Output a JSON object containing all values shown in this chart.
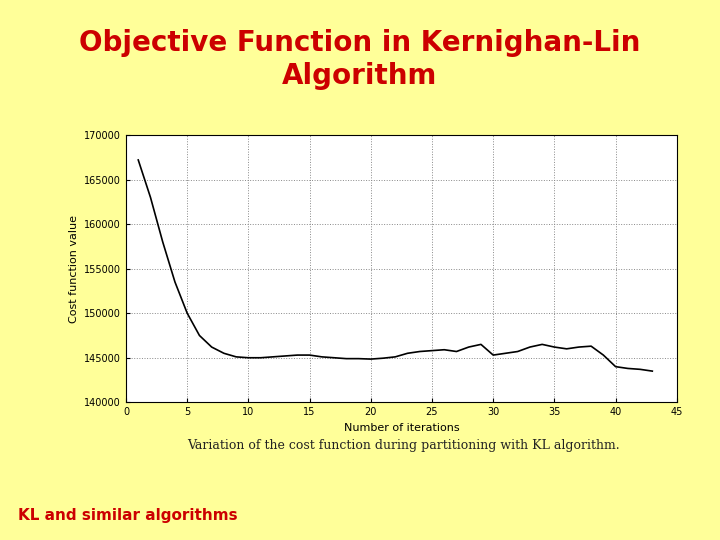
{
  "title": "Objective Function in Kernighan-Lin\nAlgorithm",
  "title_color": "#cc0000",
  "title_bg_color": "#ffff99",
  "page_bg_color": "#ffff99",
  "xlabel": "Number of iterations",
  "ylabel": "Cost function value",
  "caption": "Variation of the cost function during partitioning with KL algorithm.",
  "footer_text": "KL and similar algorithms",
  "footer_color": "#cc0000",
  "footer_bg_color": "#ffff99",
  "xlim": [
    0,
    45
  ],
  "ylim": [
    140000,
    170000
  ],
  "xticks": [
    0,
    5,
    10,
    15,
    20,
    25,
    30,
    35,
    40,
    45
  ],
  "yticks": [
    140000,
    145000,
    150000,
    155000,
    160000,
    165000,
    170000
  ],
  "curve_color": "#000000",
  "x_data": [
    1,
    2,
    3,
    4,
    5,
    6,
    7,
    8,
    9,
    10,
    11,
    12,
    13,
    14,
    15,
    16,
    17,
    18,
    19,
    20,
    21,
    22,
    23,
    24,
    25,
    26,
    27,
    28,
    29,
    30,
    31,
    32,
    33,
    34,
    35,
    36,
    37,
    38,
    39,
    40,
    41,
    42,
    43
  ],
  "y_data": [
    167200,
    163000,
    158000,
    153500,
    150000,
    147500,
    146200,
    145500,
    145100,
    145000,
    145000,
    145100,
    145200,
    145300,
    145300,
    145100,
    145000,
    144900,
    144900,
    144850,
    144950,
    145100,
    145500,
    145700,
    145800,
    145900,
    145700,
    146200,
    146500,
    145300,
    145500,
    145700,
    146200,
    146500,
    146200,
    146000,
    146200,
    146300,
    145300,
    144000,
    143800,
    143700,
    143500
  ],
  "grid_style": "dotted",
  "grid_color": "#888888",
  "plot_bg_color": "#ffffff",
  "title_fontsize": 20,
  "tick_fontsize": 7,
  "label_fontsize": 8,
  "caption_fontsize": 9
}
